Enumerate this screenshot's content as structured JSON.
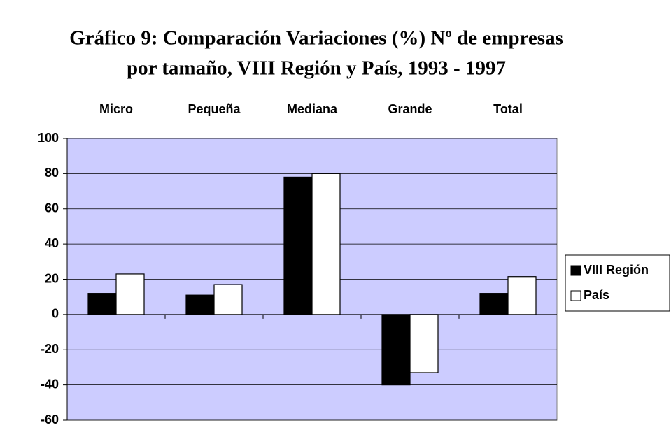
{
  "chart_data": {
    "type": "bar",
    "title": [
      "Gráfico 9: Comparación Variaciones (%) Nº de empresas",
      "por tamaño, VIII Región y País, 1993 - 1997"
    ],
    "categories": [
      "Micro",
      "Pequeña",
      "Mediana",
      "Grande",
      "Total"
    ],
    "series": [
      {
        "name": "VIII Región",
        "color": "#000000",
        "values": [
          12,
          11,
          78,
          -40,
          12
        ]
      },
      {
        "name": "País",
        "color": "#ffffff",
        "values": [
          23,
          17,
          80,
          -33,
          21.5
        ]
      }
    ],
    "ylim": [
      -60,
      100
    ],
    "yticks": [
      -60,
      -40,
      -20,
      0,
      20,
      40,
      60,
      80,
      100
    ],
    "grid": true,
    "legend": "right",
    "plot_background": "#ccccff"
  }
}
